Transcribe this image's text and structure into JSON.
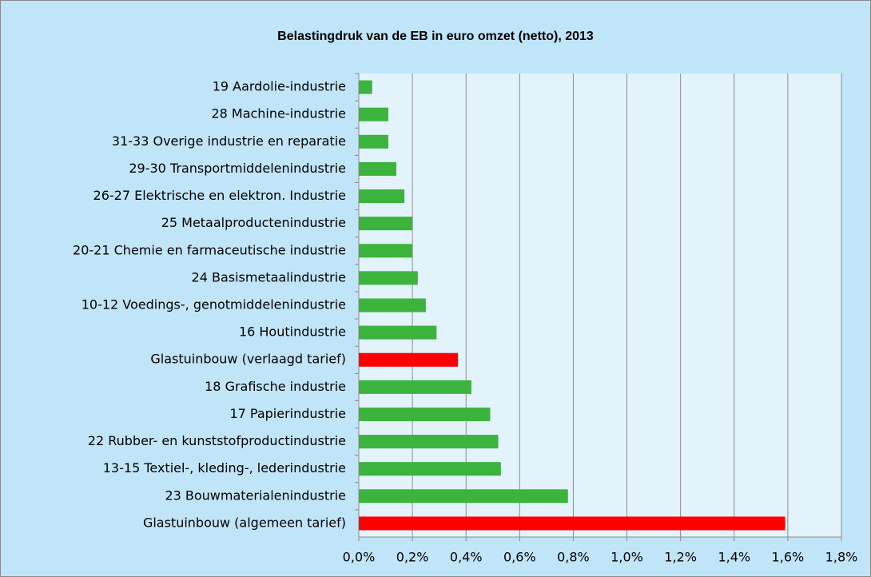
{
  "chart_data": {
    "type": "bar",
    "orientation": "horizontal",
    "title": "Belastingdruk van de EB in euro omzet (netto), 2013",
    "categories": [
      "19 Aardolie-industrie",
      "28 Machine-industrie",
      "31-33 Overige industrie en reparatie",
      "29-30 Transportmiddelenindustrie",
      "26-27 Elektrische en elektron. Industrie",
      "25 Metaalproductenindustrie",
      "20-21 Chemie en farmaceutische industrie",
      "24 Basismetaalindustrie",
      "10-12 Voedings-, genotmiddelenindustrie",
      "16 Houtindustrie",
      "Glastuinbouw (verlaagd tarief)",
      "18 Grafische industrie",
      "17 Papierindustrie",
      "22 Rubber- en kunststofproductindustrie",
      "13-15 Textiel-, kleding-, lederindustrie",
      "23 Bouwmaterialenindustrie",
      "Glastuinbouw (algemeen tarief)"
    ],
    "values": [
      0.05,
      0.11,
      0.11,
      0.14,
      0.17,
      0.2,
      0.2,
      0.22,
      0.25,
      0.29,
      0.37,
      0.42,
      0.49,
      0.52,
      0.53,
      0.78,
      1.59
    ],
    "colors": [
      "#3cb33c",
      "#3cb33c",
      "#3cb33c",
      "#3cb33c",
      "#3cb33c",
      "#3cb33c",
      "#3cb33c",
      "#3cb33c",
      "#3cb33c",
      "#3cb33c",
      "#ff0000",
      "#3cb33c",
      "#3cb33c",
      "#3cb33c",
      "#3cb33c",
      "#3cb33c",
      "#ff0000"
    ],
    "xlim": [
      0,
      1.8
    ],
    "xticks": [
      {
        "value": 0,
        "label": "0,0%"
      },
      {
        "value": 0.2,
        "label": "0,2%"
      },
      {
        "value": 0.4,
        "label": "0,4%"
      },
      {
        "value": 0.6,
        "label": "0,6%"
      },
      {
        "value": 0.8,
        "label": "0,8%"
      },
      {
        "value": 1.0,
        "label": "1,0%"
      },
      {
        "value": 1.2,
        "label": "1,2%"
      },
      {
        "value": 1.4,
        "label": "1,4%"
      },
      {
        "value": 1.6,
        "label": "1,6%"
      },
      {
        "value": 1.8,
        "label": "1,8%"
      }
    ],
    "grid": true
  }
}
